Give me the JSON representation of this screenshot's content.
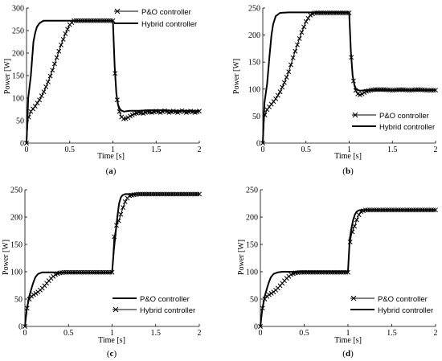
{
  "figure": {
    "panels": [
      {
        "caption_prefix": "(",
        "caption_letter": "a",
        "caption_suffix": ")",
        "legend": [
          {
            "label": "P&O controller",
            "marker": "x"
          },
          {
            "label": "Hybrid controller",
            "marker": "none"
          }
        ]
      },
      {
        "caption_prefix": "(",
        "caption_letter": "b",
        "caption_suffix": ")",
        "legend": [
          {
            "label": "P&O controller",
            "marker": "x"
          },
          {
            "label": "Hybrid controller",
            "marker": "none"
          }
        ]
      },
      {
        "caption_prefix": "(",
        "caption_letter": "c",
        "caption_suffix": ")",
        "legend": [
          {
            "label": "P&O controller",
            "marker": "none"
          },
          {
            "label": "Hybrid controller",
            "marker": "x"
          }
        ]
      },
      {
        "caption_prefix": "(",
        "caption_letter": "d",
        "caption_suffix": ")",
        "legend": [
          {
            "label": "P&O controller",
            "marker": "x"
          },
          {
            "label": "Hybrid controller",
            "marker": "none"
          }
        ]
      }
    ]
  },
  "chart_data": [
    {
      "type": "line",
      "xlabel": "Time [s]",
      "ylabel": "Power [W]",
      "xlim": [
        0,
        2
      ],
      "ylim": [
        0,
        300
      ],
      "xticks": [
        0,
        0.5,
        1,
        1.5,
        2
      ],
      "xticklabels": [
        "0",
        "0.5",
        "1",
        "1.5",
        "2"
      ],
      "yticks": [
        0,
        50,
        100,
        150,
        200,
        250,
        300
      ],
      "yticklabels": [
        "0",
        "50",
        "100",
        "150",
        "200",
        "250",
        "300"
      ],
      "legend_position": "top-right",
      "series": [
        {
          "name": "P&O controller",
          "marker": "x",
          "line_width": 1,
          "x": [
            0,
            0.02,
            0.05,
            0.1,
            0.15,
            0.2,
            0.25,
            0.3,
            0.35,
            0.4,
            0.45,
            0.5,
            0.55,
            0.6,
            0.65,
            0.7,
            0.75,
            0.8,
            0.85,
            0.9,
            0.95,
            1.0,
            1.02,
            1.04,
            1.06,
            1.08,
            1.1,
            1.13,
            1.16,
            1.2,
            1.25,
            1.3,
            1.35,
            1.4,
            1.45,
            1.5,
            1.55,
            1.6,
            1.65,
            1.7,
            1.75,
            1.8,
            1.85,
            1.9,
            1.95,
            2.0
          ],
          "y": [
            0,
            55,
            70,
            82,
            96,
            114,
            136,
            162,
            190,
            218,
            243,
            263,
            272,
            272,
            272,
            272,
            272,
            272,
            272,
            272,
            272,
            272,
            170,
            110,
            82,
            66,
            58,
            53,
            55,
            60,
            65,
            68,
            66,
            70,
            68,
            71,
            68,
            72,
            68,
            71,
            68,
            72,
            68,
            71,
            68,
            71
          ]
        },
        {
          "name": "Hybrid controller",
          "marker": "none",
          "line_width": 2,
          "x": [
            0,
            0.02,
            0.05,
            0.08,
            0.1,
            0.12,
            0.15,
            0.18,
            0.2,
            0.25,
            0.3,
            0.5,
            0.8,
            1.0,
            1.02,
            1.04,
            1.06,
            1.08,
            1.1,
            1.13,
            1.16,
            1.2,
            1.3,
            1.4,
            1.5,
            1.6,
            1.7,
            1.8,
            1.9,
            2.0
          ],
          "y": [
            0,
            100,
            150,
            225,
            245,
            258,
            266,
            270,
            272,
            272,
            272,
            272,
            272,
            272,
            170,
            110,
            85,
            76,
            72,
            70,
            71,
            72,
            72,
            73,
            73,
            73,
            72,
            72,
            72,
            72
          ]
        }
      ]
    },
    {
      "type": "line",
      "xlabel": "Time [s]",
      "ylabel": "Power [W]",
      "xlim": [
        0,
        2
      ],
      "ylim": [
        0,
        250
      ],
      "xticks": [
        0,
        0.5,
        1,
        1.5,
        2
      ],
      "xticklabels": [
        "0",
        "0.5",
        "1",
        "1.5",
        "2"
      ],
      "yticks": [
        0,
        50,
        100,
        150,
        200,
        250
      ],
      "yticklabels": [
        "0",
        "50",
        "100",
        "150",
        "200",
        "250"
      ],
      "legend_position": "bottom-right",
      "series": [
        {
          "name": "P&O controller",
          "marker": "x",
          "line_width": 1,
          "x": [
            0,
            0.02,
            0.05,
            0.1,
            0.15,
            0.2,
            0.25,
            0.3,
            0.35,
            0.4,
            0.45,
            0.5,
            0.55,
            0.6,
            0.65,
            0.7,
            0.8,
            0.9,
            1.0,
            1.02,
            1.04,
            1.06,
            1.08,
            1.1,
            1.13,
            1.16,
            1.2,
            1.25,
            1.3,
            1.4,
            1.5,
            1.6,
            1.7,
            1.8,
            1.9,
            2.0
          ],
          "y": [
            0,
            50,
            62,
            72,
            82,
            95,
            112,
            132,
            158,
            182,
            205,
            225,
            237,
            241,
            241,
            241,
            241,
            241,
            241,
            170,
            125,
            105,
            95,
            91,
            89,
            92,
            96,
            98,
            99,
            99,
            98,
            99,
            98,
            99,
            98,
            98
          ]
        },
        {
          "name": "Hybrid controller",
          "marker": "none",
          "line_width": 2,
          "x": [
            0,
            0.02,
            0.05,
            0.08,
            0.1,
            0.12,
            0.15,
            0.2,
            0.3,
            0.5,
            0.8,
            1.0,
            1.02,
            1.04,
            1.06,
            1.08,
            1.1,
            1.13,
            1.2,
            1.3,
            1.5,
            2.0
          ],
          "y": [
            0,
            75,
            110,
            165,
            200,
            220,
            235,
            241,
            242,
            242,
            242,
            242,
            170,
            125,
            108,
            100,
            98,
            97,
            98,
            98,
            98,
            98
          ]
        }
      ]
    },
    {
      "type": "line",
      "xlabel": "Time [s]",
      "ylabel": "Power [W]",
      "xlim": [
        0,
        2
      ],
      "ylim": [
        0,
        250
      ],
      "xticks": [
        0,
        0.5,
        1,
        1.5,
        2
      ],
      "xticklabels": [
        "0",
        "0.5",
        "1",
        "1.5",
        "2"
      ],
      "yticks": [
        0,
        50,
        100,
        150,
        200,
        250
      ],
      "yticklabels": [
        "0",
        "50",
        "100",
        "150",
        "200",
        "250"
      ],
      "legend_position": "bottom-right",
      "series": [
        {
          "name": "P&O controller",
          "marker": "none",
          "line_width": 2,
          "x": [
            0,
            0.02,
            0.05,
            0.08,
            0.1,
            0.12,
            0.15,
            0.2,
            0.25,
            0.5,
            0.8,
            1.0,
            1.02,
            1.04,
            1.06,
            1.08,
            1.1,
            1.12,
            1.15,
            1.2,
            1.3,
            1.5,
            2.0
          ],
          "y": [
            0,
            30,
            55,
            72,
            82,
            90,
            96,
            99,
            99,
            99,
            99,
            99,
            140,
            170,
            200,
            225,
            236,
            240,
            242,
            242,
            242,
            242,
            242
          ]
        },
        {
          "name": "Hybrid controller",
          "marker": "x",
          "line_width": 1,
          "x": [
            0,
            0.02,
            0.05,
            0.08,
            0.1,
            0.15,
            0.2,
            0.25,
            0.3,
            0.35,
            0.4,
            0.45,
            0.5,
            0.6,
            0.7,
            0.8,
            0.9,
            1.0,
            1.02,
            1.05,
            1.08,
            1.1,
            1.13,
            1.16,
            1.2,
            1.25,
            1.3,
            1.4,
            1.5,
            1.6,
            1.7,
            1.8,
            1.9,
            2.0
          ],
          "y": [
            0,
            30,
            50,
            56,
            58,
            63,
            70,
            79,
            88,
            95,
            98,
            99,
            99,
            99,
            99,
            99,
            99,
            99,
            160,
            185,
            195,
            205,
            220,
            232,
            239,
            241,
            242,
            242,
            242,
            242,
            242,
            242,
            242,
            242
          ]
        }
      ]
    },
    {
      "type": "line",
      "xlabel": "Time [s]",
      "ylabel": "Power [W]",
      "xlim": [
        0,
        2
      ],
      "ylim": [
        0,
        250
      ],
      "xticks": [
        0,
        0.5,
        1,
        1.5,
        2
      ],
      "xticklabels": [
        "0",
        "0.5",
        "1",
        "1.5",
        "2"
      ],
      "yticks": [
        0,
        50,
        100,
        150,
        200,
        250
      ],
      "yticklabels": [
        "0",
        "50",
        "100",
        "150",
        "200",
        "250"
      ],
      "legend_position": "bottom-right",
      "series": [
        {
          "name": "P&O controller",
          "marker": "x",
          "line_width": 1,
          "x": [
            0,
            0.02,
            0.05,
            0.08,
            0.1,
            0.15,
            0.2,
            0.25,
            0.3,
            0.35,
            0.4,
            0.45,
            0.5,
            0.6,
            0.7,
            0.8,
            0.9,
            1.0,
            1.02,
            1.04,
            1.06,
            1.08,
            1.1,
            1.12,
            1.15,
            1.2,
            1.3,
            1.4,
            1.5,
            1.6,
            1.7,
            1.8,
            1.9,
            2.0
          ],
          "y": [
            0,
            30,
            50,
            56,
            58,
            63,
            70,
            79,
            88,
            95,
            98,
            99,
            99,
            99,
            99,
            99,
            99,
            99,
            150,
            168,
            178,
            185,
            195,
            203,
            210,
            213,
            213,
            213,
            213,
            213,
            213,
            213,
            213,
            213
          ]
        },
        {
          "name": "Hybrid controller",
          "marker": "none",
          "line_width": 2,
          "x": [
            0,
            0.02,
            0.05,
            0.08,
            0.1,
            0.12,
            0.15,
            0.2,
            0.25,
            0.5,
            0.8,
            1.0,
            1.02,
            1.04,
            1.06,
            1.08,
            1.1,
            1.12,
            1.15,
            1.2,
            1.3,
            1.5,
            2.0
          ],
          "y": [
            0,
            30,
            55,
            72,
            82,
            90,
            96,
            99,
            100,
            100,
            100,
            100,
            160,
            180,
            195,
            205,
            210,
            212,
            213,
            213,
            213,
            213,
            213
          ]
        }
      ]
    }
  ]
}
